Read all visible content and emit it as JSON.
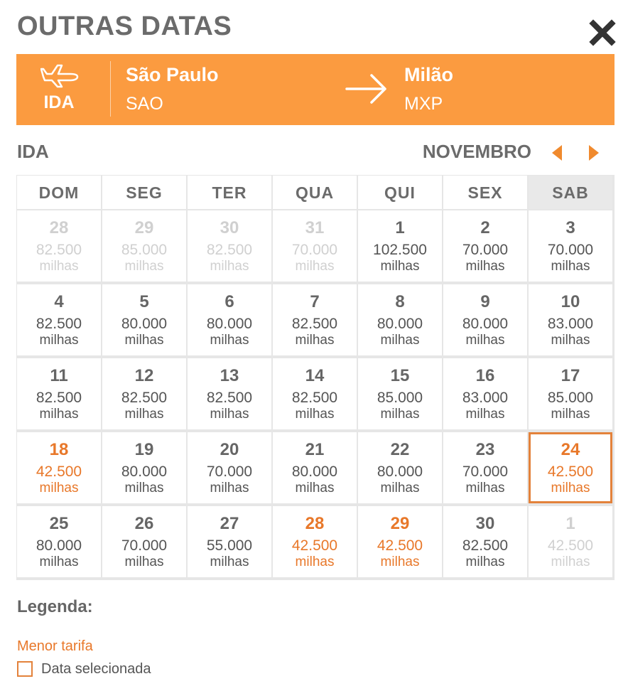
{
  "header": {
    "title": "OUTRAS DATAS",
    "close_icon": "close-icon"
  },
  "route": {
    "direction": "IDA",
    "origin": {
      "city": "São Paulo",
      "code": "SAO"
    },
    "destination": {
      "city": "Milão",
      "code": "MXP"
    },
    "icons": [
      "plane-icon",
      "arrow-right-icon"
    ],
    "color": "#fb9b40"
  },
  "calendar": {
    "section_label": "IDA",
    "month": "NOVEMBRO",
    "nav_icons": [
      "chevron-left-icon",
      "chevron-right-icon"
    ],
    "weekdays": [
      "DOM",
      "SEG",
      "TER",
      "QUA",
      "QUI",
      "SEX",
      "SAB"
    ],
    "selected_weekday_index": 6,
    "accent_color": "#e8782a",
    "weeks": [
      [
        {
          "day": "28",
          "price": "82.500",
          "unit": "milhas",
          "state": "other"
        },
        {
          "day": "29",
          "price": "85.000",
          "unit": "milhas",
          "state": "other"
        },
        {
          "day": "30",
          "price": "82.500",
          "unit": "milhas",
          "state": "other"
        },
        {
          "day": "31",
          "price": "70.000",
          "unit": "milhas",
          "state": "other"
        },
        {
          "day": "1",
          "price": "102.500",
          "unit": "milhas",
          "state": "normal"
        },
        {
          "day": "2",
          "price": "70.000",
          "unit": "milhas",
          "state": "normal"
        },
        {
          "day": "3",
          "price": "70.000",
          "unit": "milhas",
          "state": "normal"
        }
      ],
      [
        {
          "day": "4",
          "price": "82.500",
          "unit": "milhas",
          "state": "normal"
        },
        {
          "day": "5",
          "price": "80.000",
          "unit": "milhas",
          "state": "normal"
        },
        {
          "day": "6",
          "price": "80.000",
          "unit": "milhas",
          "state": "normal"
        },
        {
          "day": "7",
          "price": "82.500",
          "unit": "milhas",
          "state": "normal"
        },
        {
          "day": "8",
          "price": "80.000",
          "unit": "milhas",
          "state": "normal"
        },
        {
          "day": "9",
          "price": "80.000",
          "unit": "milhas",
          "state": "normal"
        },
        {
          "day": "10",
          "price": "83.000",
          "unit": "milhas",
          "state": "normal"
        }
      ],
      [
        {
          "day": "11",
          "price": "82.500",
          "unit": "milhas",
          "state": "normal"
        },
        {
          "day": "12",
          "price": "82.500",
          "unit": "milhas",
          "state": "normal"
        },
        {
          "day": "13",
          "price": "82.500",
          "unit": "milhas",
          "state": "normal"
        },
        {
          "day": "14",
          "price": "82.500",
          "unit": "milhas",
          "state": "normal"
        },
        {
          "day": "15",
          "price": "85.000",
          "unit": "milhas",
          "state": "normal"
        },
        {
          "day": "16",
          "price": "83.000",
          "unit": "milhas",
          "state": "normal"
        },
        {
          "day": "17",
          "price": "85.000",
          "unit": "milhas",
          "state": "normal"
        }
      ],
      [
        {
          "day": "18",
          "price": "42.500",
          "unit": "milhas",
          "state": "low"
        },
        {
          "day": "19",
          "price": "80.000",
          "unit": "milhas",
          "state": "normal"
        },
        {
          "day": "20",
          "price": "70.000",
          "unit": "milhas",
          "state": "normal"
        },
        {
          "day": "21",
          "price": "80.000",
          "unit": "milhas",
          "state": "normal"
        },
        {
          "day": "22",
          "price": "80.000",
          "unit": "milhas",
          "state": "normal"
        },
        {
          "day": "23",
          "price": "70.000",
          "unit": "milhas",
          "state": "normal"
        },
        {
          "day": "24",
          "price": "42.500",
          "unit": "milhas",
          "state": "low selected"
        }
      ],
      [
        {
          "day": "25",
          "price": "80.000",
          "unit": "milhas",
          "state": "normal"
        },
        {
          "day": "26",
          "price": "70.000",
          "unit": "milhas",
          "state": "normal"
        },
        {
          "day": "27",
          "price": "55.000",
          "unit": "milhas",
          "state": "normal"
        },
        {
          "day": "28",
          "price": "42.500",
          "unit": "milhas",
          "state": "low"
        },
        {
          "day": "29",
          "price": "42.500",
          "unit": "milhas",
          "state": "low"
        },
        {
          "day": "30",
          "price": "82.500",
          "unit": "milhas",
          "state": "normal"
        },
        {
          "day": "1",
          "price": "42.500",
          "unit": "milhas",
          "state": "other"
        }
      ]
    ]
  },
  "legend": {
    "title": "Legenda:",
    "lowest_fare": "Menor tarifa",
    "selected_date": "Data selecionada"
  }
}
